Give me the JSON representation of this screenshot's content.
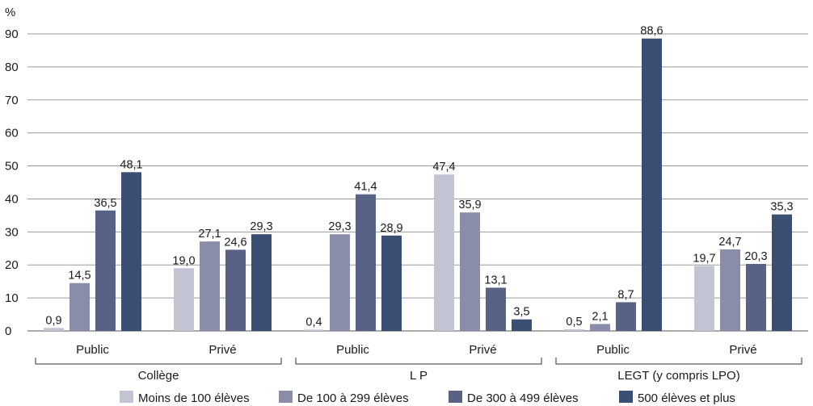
{
  "chart_data": {
    "type": "bar",
    "ylabel": "%",
    "ylim": [
      0,
      90
    ],
    "yticks": [
      "0",
      "10",
      "20",
      "30",
      "40",
      "50",
      "60",
      "70",
      "80",
      "90"
    ],
    "grid": true,
    "groups": [
      {
        "label": "Collège",
        "subgroups": [
          "Public",
          "Privé"
        ]
      },
      {
        "label": "L P",
        "subgroups": [
          "Public",
          "Privé"
        ]
      },
      {
        "label": "LEGT (y compris LPO)",
        "subgroups": [
          "Public",
          "Privé"
        ]
      }
    ],
    "categories": [
      "Collège – Public",
      "Collège – Privé",
      "L P – Public",
      "L P – Privé",
      "LEGT – Public",
      "LEGT – Privé"
    ],
    "series": [
      {
        "name": "Moins de 100 élèves",
        "color": "#c3c4d3",
        "values": [
          0.9,
          19.0,
          0.4,
          47.4,
          0.5,
          19.7
        ],
        "labels": [
          "0,9",
          "19,0",
          "0,4",
          "47,4",
          "0,5",
          "19,7"
        ]
      },
      {
        "name": "De 100 à 299 élèves",
        "color": "#8a8da9",
        "values": [
          14.5,
          27.1,
          29.3,
          35.9,
          2.1,
          24.7
        ],
        "labels": [
          "14,5",
          "27,1",
          "29,3",
          "35,9",
          "2,1",
          "24,7"
        ]
      },
      {
        "name": "De 300 à 499 élèves",
        "color": "#586285",
        "values": [
          36.5,
          24.6,
          41.4,
          13.1,
          8.7,
          20.3
        ],
        "labels": [
          "36,5",
          "24,6",
          "41,4",
          "13,1",
          "8,7",
          "20,3"
        ]
      },
      {
        "name": "500 élèves et plus",
        "color": "#3a4d73",
        "values": [
          48.1,
          29.3,
          28.9,
          3.5,
          88.6,
          35.3
        ],
        "labels": [
          "48,1",
          "29,3",
          "28,9",
          "3,5",
          "88,6",
          "35,3"
        ]
      }
    ],
    "legend_position": "bottom"
  }
}
